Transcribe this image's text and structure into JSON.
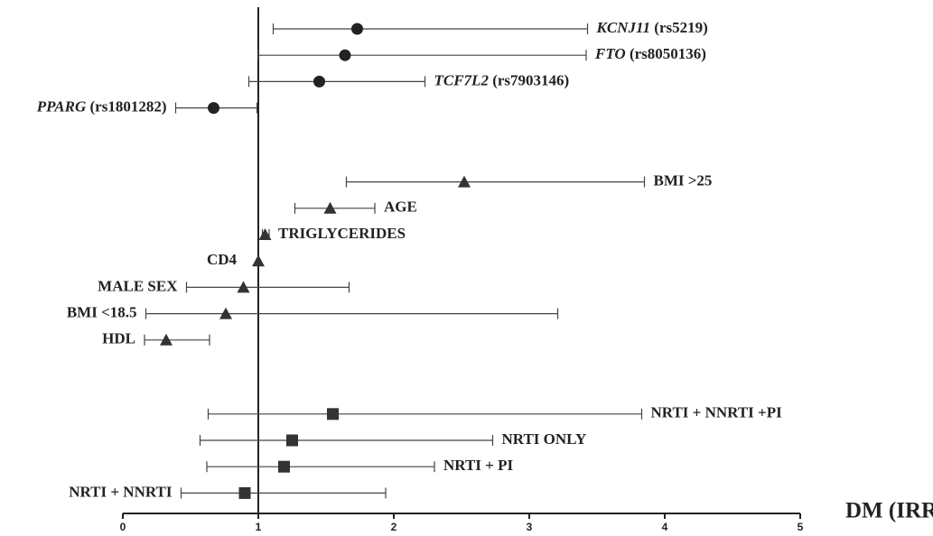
{
  "chart_data": {
    "type": "forest",
    "x_label": "DM (IRR)",
    "xlim": [
      0,
      5
    ],
    "xticks": [
      0,
      1,
      2,
      3,
      4,
      5
    ],
    "reference_line": 1,
    "color": "#222222",
    "groups": [
      {
        "marker": "circle",
        "rows": [
          {
            "gene": "KCNJ11",
            "label": "(rs5219)",
            "estimate": 1.73,
            "lower": 1.11,
            "upper": 3.43,
            "label_side": "right"
          },
          {
            "gene": "FTO",
            "label": "(rs8050136)",
            "estimate": 1.64,
            "lower": 1.0,
            "upper": 3.42,
            "label_side": "right"
          },
          {
            "gene": "TCF7L2",
            "label": "(rs7903146)",
            "estimate": 1.45,
            "lower": 0.93,
            "upper": 2.23,
            "label_side": "right"
          },
          {
            "gene": "PPARG",
            "label": "(rs1801282)",
            "estimate": 0.67,
            "lower": 0.39,
            "upper": 0.99,
            "label_side": "left"
          }
        ]
      },
      {
        "marker": "triangle",
        "rows": [
          {
            "label": "BMI >25",
            "estimate": 2.52,
            "lower": 1.65,
            "upper": 3.85,
            "label_side": "right"
          },
          {
            "label": "AGE",
            "estimate": 1.53,
            "lower": 1.27,
            "upper": 1.86,
            "label_side": "right"
          },
          {
            "label": "TRIGLYCERIDES",
            "estimate": 1.05,
            "lower": 1.03,
            "upper": 1.08,
            "label_side": "right"
          },
          {
            "label": "CD4",
            "estimate": 1.0,
            "lower": null,
            "upper": null,
            "label_side": "left"
          },
          {
            "label": "MALE SEX",
            "estimate": 0.89,
            "lower": 0.47,
            "upper": 1.67,
            "label_side": "left"
          },
          {
            "label": "BMI <18.5",
            "estimate": 0.76,
            "lower": 0.17,
            "upper": 3.21,
            "label_side": "left"
          },
          {
            "label": "HDL",
            "estimate": 0.32,
            "lower": 0.16,
            "upper": 0.64,
            "label_side": "left"
          }
        ]
      },
      {
        "marker": "square",
        "rows": [
          {
            "label": "NRTI + NNRTI +PI",
            "estimate": 1.55,
            "lower": 0.63,
            "upper": 3.83,
            "label_side": "right"
          },
          {
            "label": "NRTI ONLY",
            "estimate": 1.25,
            "lower": 0.57,
            "upper": 2.73,
            "label_side": "right"
          },
          {
            "label": "NRTI + PI",
            "estimate": 1.19,
            "lower": 0.62,
            "upper": 2.3,
            "label_side": "right"
          },
          {
            "label": "NRTI + NNRTI",
            "estimate": 0.9,
            "lower": 0.43,
            "upper": 1.94,
            "label_side": "left"
          }
        ]
      }
    ]
  }
}
